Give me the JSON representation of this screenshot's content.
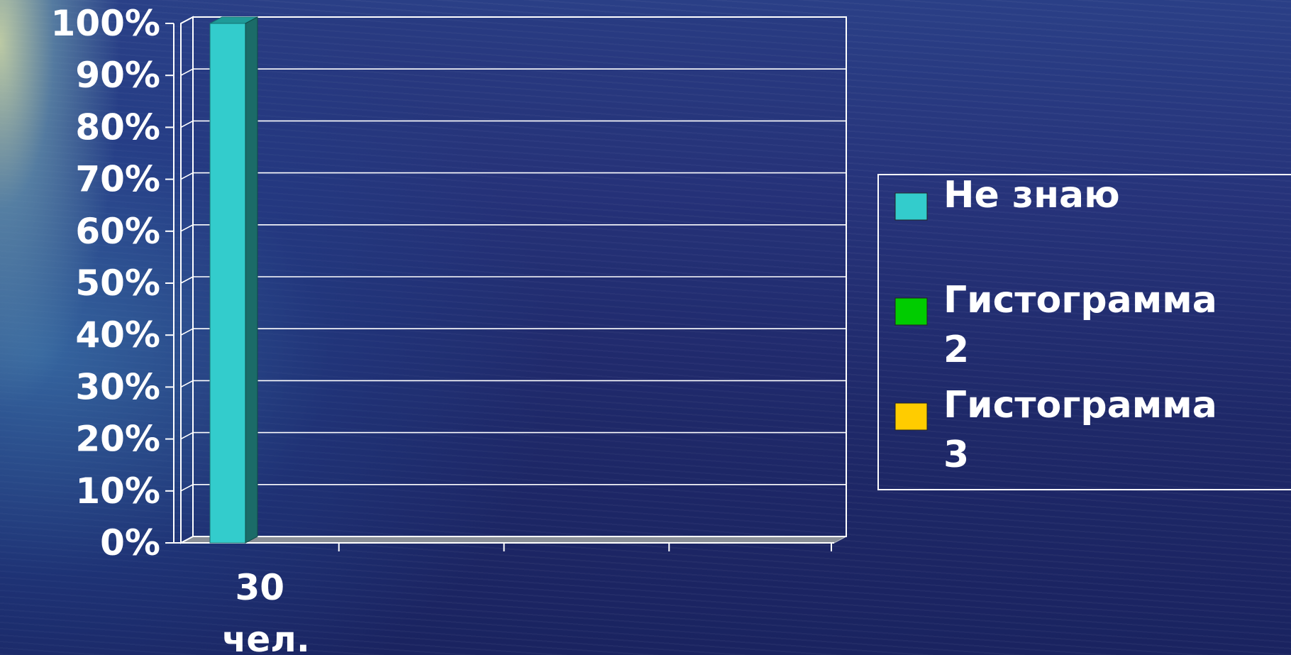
{
  "chart_data": {
    "type": "bar",
    "categories": [
      "30 чел."
    ],
    "series": [
      {
        "name": "Не знаю",
        "values": [
          100
        ],
        "color": "#33cccc"
      },
      {
        "name": "Гистограмма 2",
        "values": [
          0
        ],
        "color": "#00cc00"
      },
      {
        "name": "Гистограмма 3",
        "values": [
          0
        ],
        "color": "#ffcc00"
      }
    ],
    "ylim": [
      0,
      100
    ],
    "ytick_values": [
      0,
      10,
      20,
      30,
      40,
      50,
      60,
      70,
      80,
      90,
      100
    ],
    "ytick_labels": [
      "0%",
      "10%",
      "20%",
      "30%",
      "40%",
      "50%",
      "60%",
      "70%",
      "80%",
      "90%",
      "100%"
    ],
    "category_label_lines": [
      "30",
      "чел."
    ],
    "grid": true,
    "legend_position": "right",
    "style": "3d"
  }
}
